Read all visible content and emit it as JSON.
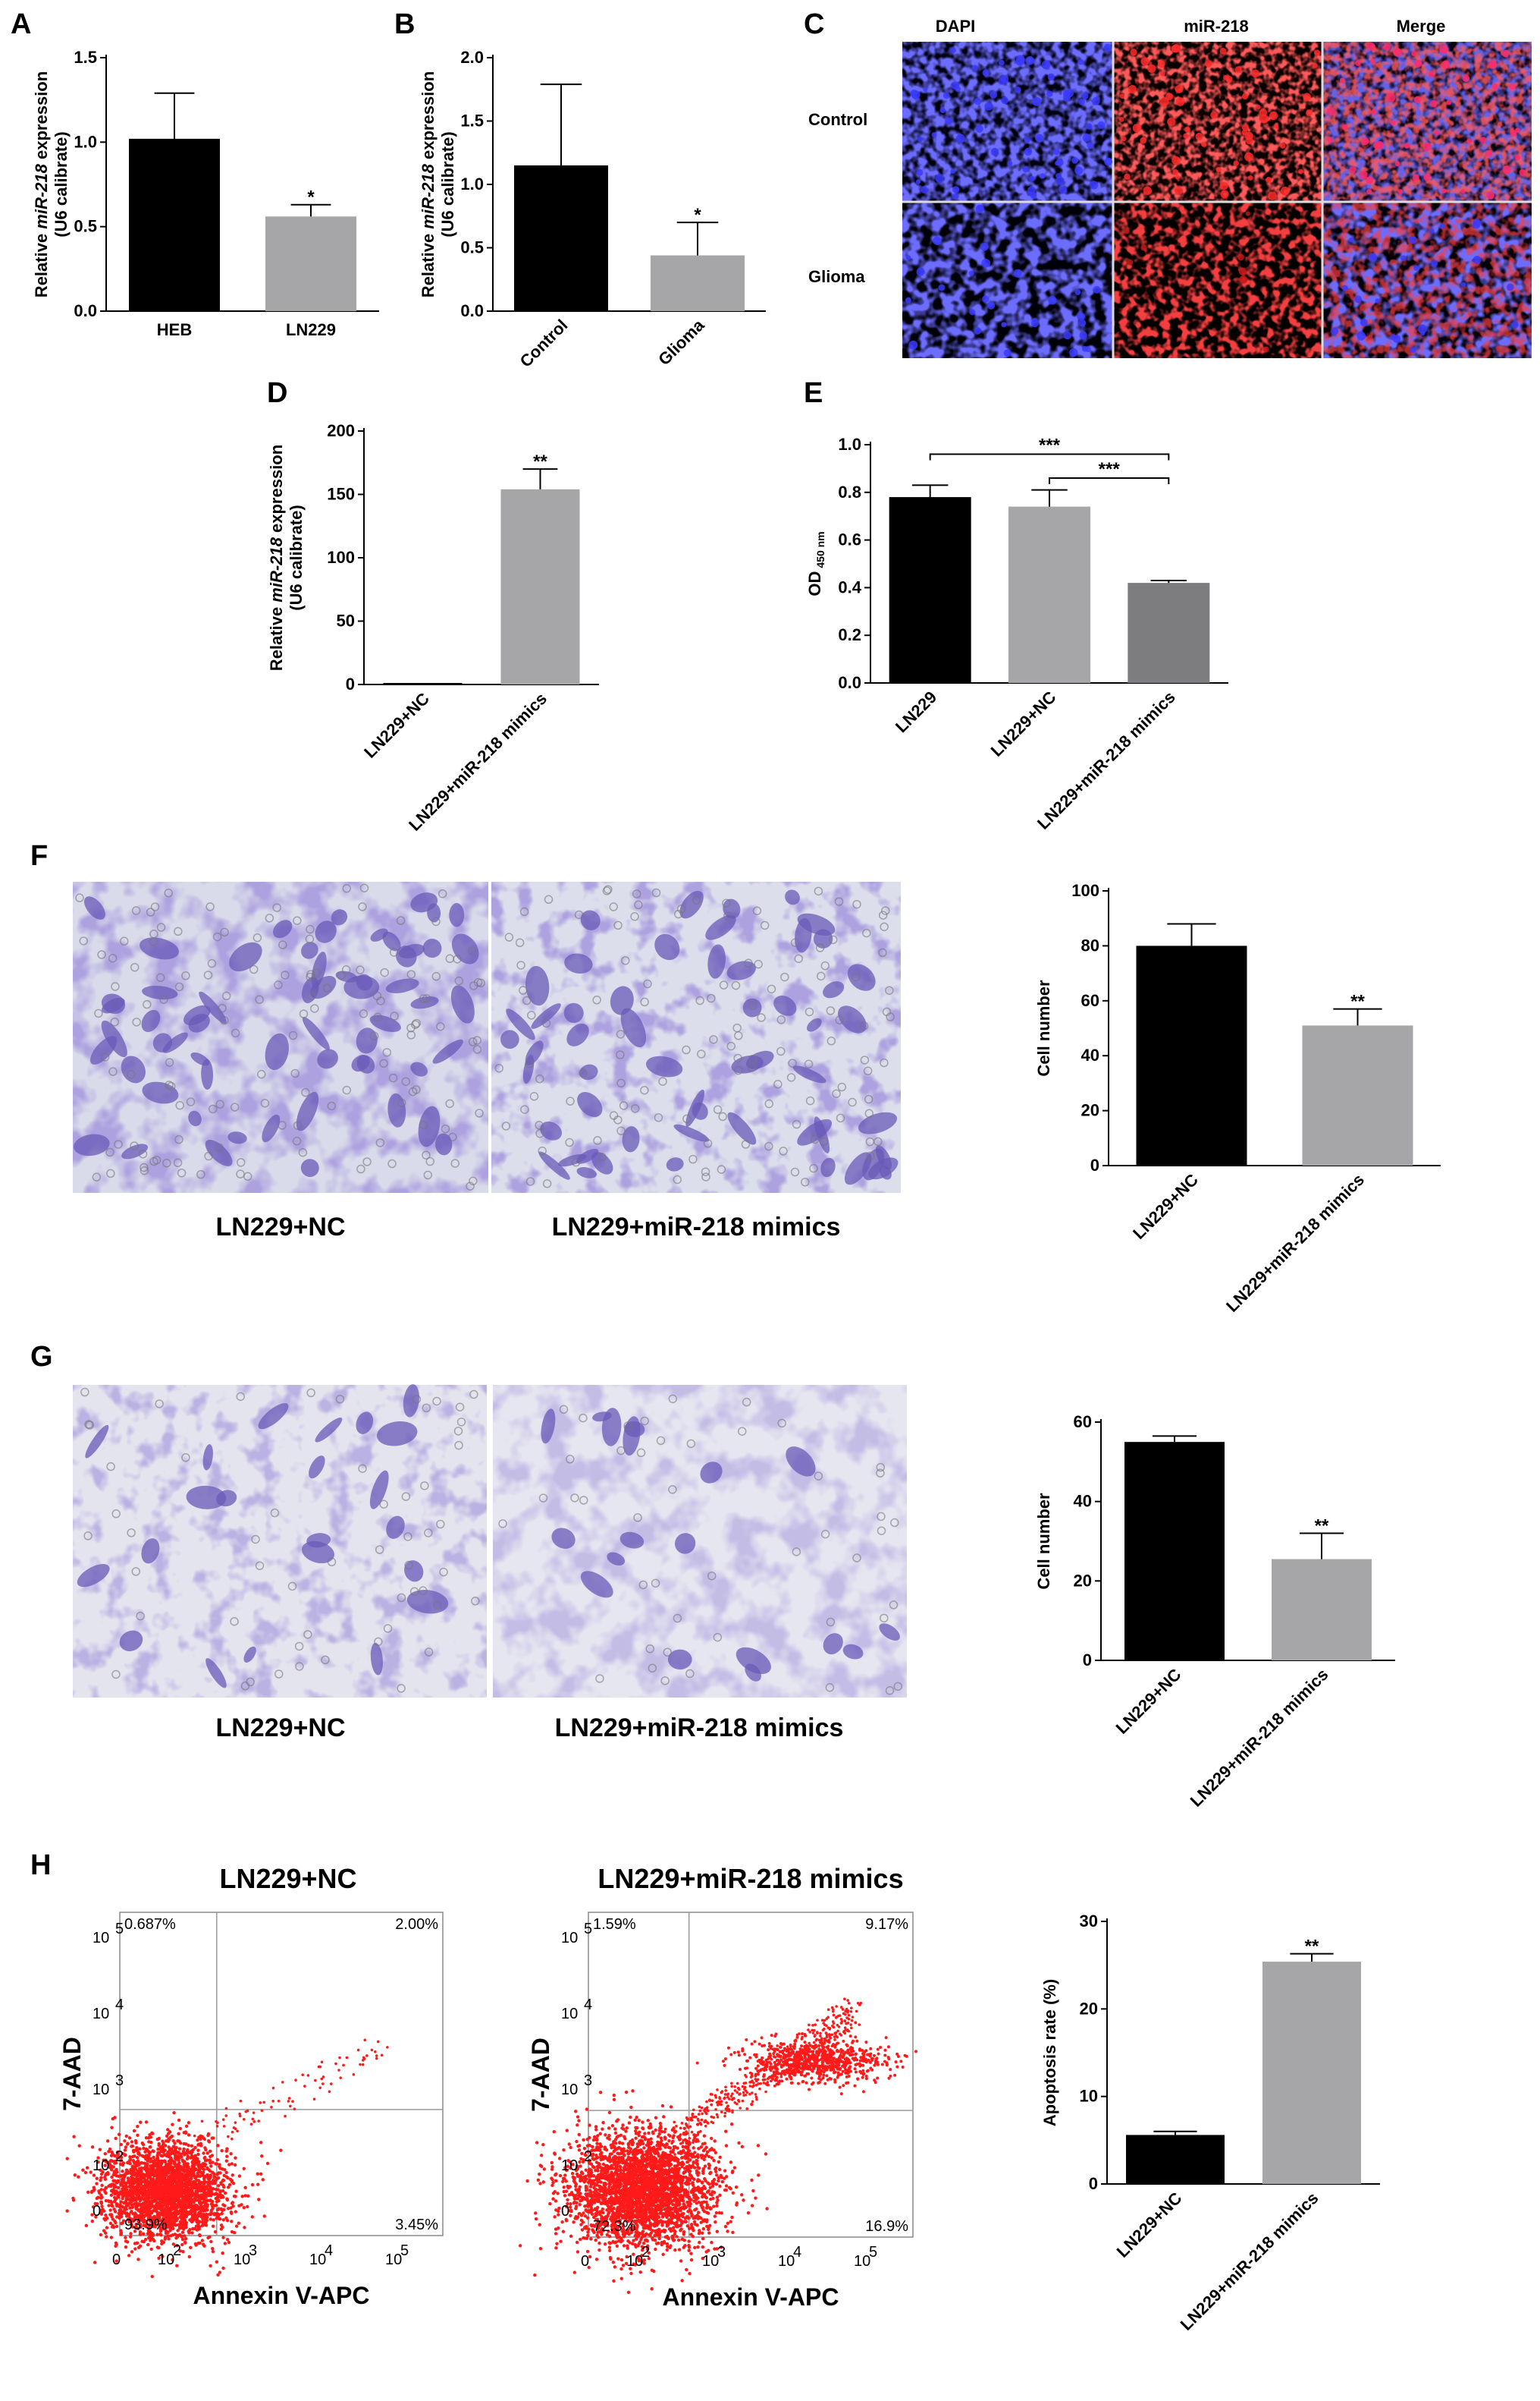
{
  "panel_labels": [
    "A",
    "B",
    "C",
    "D",
    "E",
    "F",
    "G",
    "H"
  ],
  "colors": {
    "black_bar": "#000000",
    "grey_bar": "#a6a6a8",
    "dark_grey_bar": "#7d7d7f",
    "dapi": "#2a2aff",
    "mir": "#e02020",
    "stain": "#6a5ab8",
    "flow_dot": "#ff1a1a"
  },
  "chart_data": [
    {
      "id": "A",
      "type": "bar",
      "categories": [
        "HEB",
        "LN229"
      ],
      "values": [
        1.02,
        0.56
      ],
      "errors": [
        0.27,
        0.07
      ],
      "significance": [
        "",
        "*"
      ],
      "ylabel_parts": [
        "Relative ",
        "miR-218",
        " expression"
      ],
      "ylabel2": "(U6 calibrate)",
      "ylim": [
        0,
        1.5
      ],
      "yticks": [
        "0.0",
        "0.5",
        "1.0",
        "1.5"
      ],
      "colors": [
        "#000000",
        "#a6a6a8"
      ]
    },
    {
      "id": "B",
      "type": "bar",
      "categories": [
        "Control",
        "Glioma"
      ],
      "values": [
        1.15,
        0.44
      ],
      "errors": [
        0.64,
        0.26
      ],
      "significance": [
        "",
        "*"
      ],
      "ylabel_parts": [
        "Relative ",
        "miR-218",
        " expression"
      ],
      "ylabel2": "(U6 calibrate)",
      "ylim": [
        0,
        2.0
      ],
      "yticks": [
        "0.0",
        "0.5",
        "1.0",
        "1.5",
        "2.0"
      ],
      "colors": [
        "#000000",
        "#a6a6a8"
      ]
    },
    {
      "id": "D",
      "type": "bar",
      "categories": [
        "LN229+NC",
        "LN229+miR-218 mimics"
      ],
      "values": [
        1,
        154
      ],
      "errors": [
        0,
        16
      ],
      "significance": [
        "",
        "**"
      ],
      "ylabel_parts": [
        "Relative ",
        "miR-218",
        " expression"
      ],
      "ylabel2": "(U6 calibrate)",
      "ylim": [
        0,
        200
      ],
      "yticks": [
        "0",
        "50",
        "100",
        "150",
        "200"
      ],
      "colors": [
        "#000000",
        "#a6a6a8"
      ]
    },
    {
      "id": "E",
      "type": "bar",
      "categories": [
        "LN229",
        "LN229+NC",
        "LN229+miR-218 mimics"
      ],
      "values": [
        0.78,
        0.74,
        0.42
      ],
      "errors": [
        0.05,
        0.07,
        0.01
      ],
      "brackets": [
        "***",
        "***"
      ],
      "ylabel": "OD",
      "ylabel_sub": "450 nm",
      "ylim": [
        0,
        1.0
      ],
      "yticks": [
        "0.0",
        "0.2",
        "0.4",
        "0.6",
        "0.8",
        "1.0"
      ],
      "colors": [
        "#000000",
        "#a6a6a8",
        "#7d7d7f"
      ]
    },
    {
      "id": "F",
      "type": "bar",
      "categories": [
        "LN229+NC",
        "LN229+miR-218 mimics"
      ],
      "values": [
        80,
        51
      ],
      "errors": [
        8,
        6
      ],
      "significance": [
        "",
        "**"
      ],
      "ylabel": "Cell number",
      "ylim": [
        0,
        100
      ],
      "yticks": [
        "0",
        "20",
        "40",
        "60",
        "80",
        "100"
      ],
      "colors": [
        "#000000",
        "#a6a6a8"
      ]
    },
    {
      "id": "G",
      "type": "bar",
      "categories": [
        "LN229+NC",
        "LN229+miR-218 mimics"
      ],
      "values": [
        55,
        25.5
      ],
      "errors": [
        1.5,
        6.5
      ],
      "significance": [
        "",
        "**"
      ],
      "ylabel": "Cell number",
      "ylim": [
        0,
        60
      ],
      "yticks": [
        "0",
        "20",
        "40",
        "60"
      ],
      "colors": [
        "#000000",
        "#a6a6a8"
      ]
    },
    {
      "id": "H",
      "type": "bar",
      "categories": [
        "LN229+NC",
        "LN229+miR-218 mimics"
      ],
      "values": [
        5.6,
        25.4
      ],
      "errors": [
        0.4,
        0.9
      ],
      "significance": [
        "",
        "**"
      ],
      "ylabel": "Apoptosis rate (%)",
      "ylim": [
        0,
        30
      ],
      "yticks": [
        "0",
        "10",
        "20",
        "30"
      ],
      "colors": [
        "#000000",
        "#a6a6a8"
      ]
    }
  ],
  "panel_c": {
    "columns": [
      "DAPI",
      "miR-218",
      "Merge"
    ],
    "rows": [
      "Control",
      "Glioma"
    ]
  },
  "panel_f": {
    "captions": [
      "LN229+NC",
      "LN229+miR-218 mimics"
    ]
  },
  "panel_g": {
    "captions": [
      "LN229+NC",
      "LN229+miR-218 mimics"
    ]
  },
  "flow": [
    {
      "title": "LN229+NC",
      "quadrants": {
        "ul": "0.687%",
        "ur": "2.00%",
        "ll": "93.9%",
        "lr": "3.45%"
      },
      "xlabel": "Annexin V-APC",
      "ylabel": "7-AAD"
    },
    {
      "title": "LN229+miR-218 mimics",
      "quadrants": {
        "ul": "1.59%",
        "ur": "9.17%",
        "ll": "72.3%",
        "lr": "16.9%"
      },
      "xlabel": "Annexin V-APC",
      "ylabel": "7-AAD"
    }
  ],
  "flow_axis_ticks": {
    "x": [
      "0",
      "10",
      "2",
      "10",
      "3",
      "10",
      "4",
      "10",
      "5"
    ],
    "y": [
      "10",
      "5",
      "10",
      "4",
      "10",
      "3",
      "10",
      "2",
      "0"
    ]
  }
}
